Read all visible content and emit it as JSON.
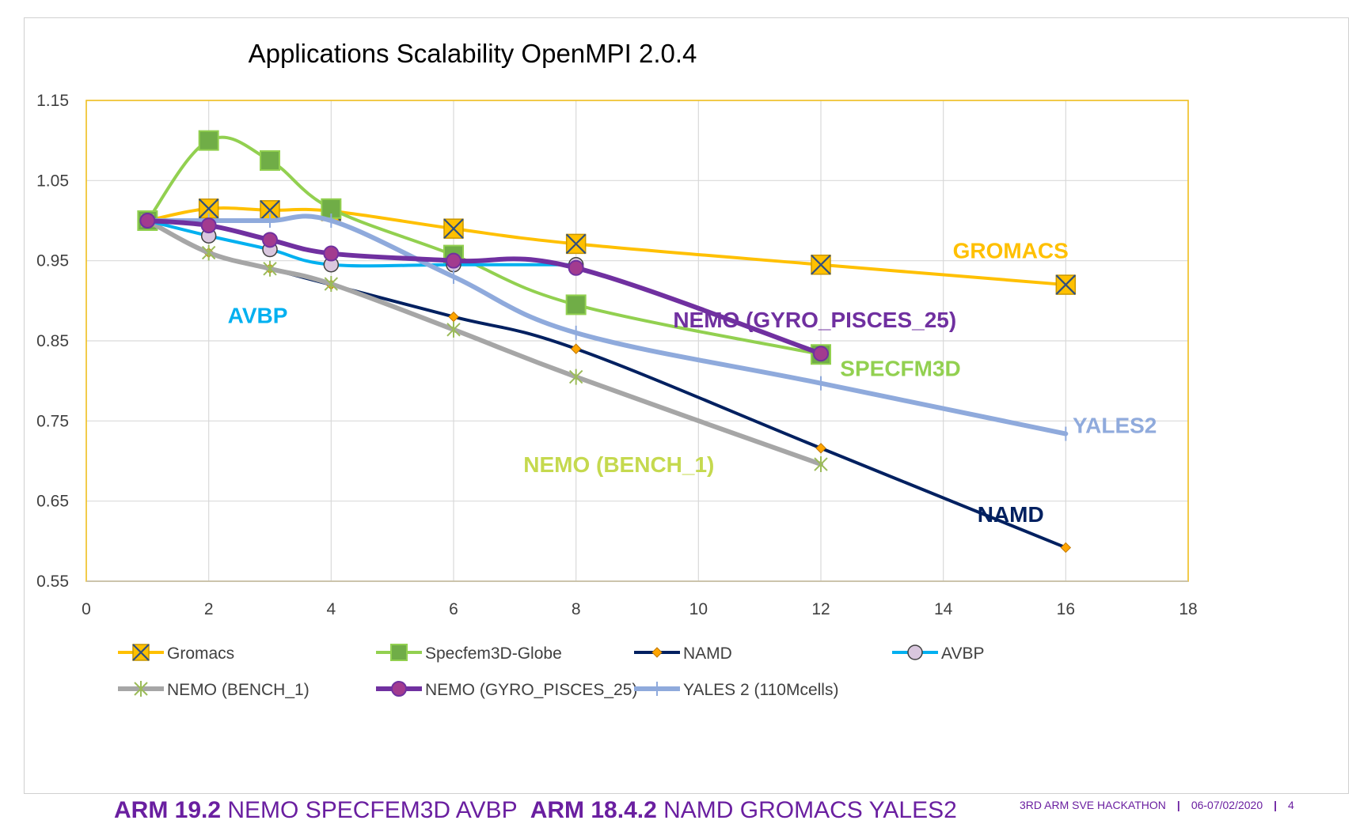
{
  "footer": {
    "arm1": "ARM 19.2",
    "apps1": " NEMO SPECFEM3D AVBP  ",
    "arm2": "ARM 18.4.2",
    "apps2": " NAMD GROMACS YALES2",
    "event": "3RD ARM SVE HACKATHON",
    "sep": "|",
    "date": "06-07/02/2020",
    "page": "4"
  },
  "chart_data": {
    "type": "line",
    "title": "Applications Scalability  OpenMPI 2.0.4",
    "xlim": [
      0,
      18
    ],
    "ylim": [
      0.55,
      1.15
    ],
    "x_ticks": [
      "0",
      "2",
      "4",
      "6",
      "8",
      "10",
      "12",
      "14",
      "16",
      "18"
    ],
    "y_ticks": [
      "0.55",
      "0.65",
      "0.75",
      "0.85",
      "0.95",
      "1.05",
      "1.15"
    ],
    "grid": true,
    "legend_position": "bottom",
    "series": [
      {
        "name": "Gromacs",
        "color": "#ffc000",
        "marker": "square-x",
        "width": 4,
        "x": [
          1,
          2,
          3,
          4,
          6,
          8,
          12,
          16
        ],
        "y": [
          1.0,
          1.015,
          1.013,
          1.012,
          0.99,
          0.971,
          0.945,
          0.92
        ]
      },
      {
        "name": "Specfem3D-Globe",
        "color": "#92d050",
        "marker": "square",
        "width": 4,
        "x": [
          1,
          2,
          3,
          4,
          6,
          8,
          12
        ],
        "y": [
          1.0,
          1.1,
          1.075,
          1.015,
          0.957,
          0.895,
          0.833
        ]
      },
      {
        "name": "NAMD",
        "color": "#002060",
        "marker": "diamond",
        "width": 4,
        "x": [
          1,
          2,
          3,
          4,
          6,
          8,
          12,
          16
        ],
        "y": [
          1.0,
          0.96,
          0.94,
          0.92,
          0.88,
          0.84,
          0.716,
          0.592
        ]
      },
      {
        "name": "AVBP",
        "color": "#00b0f0",
        "marker": "circle",
        "width": 4,
        "x": [
          1,
          2,
          3,
          4,
          6,
          8
        ],
        "y": [
          1.0,
          0.981,
          0.964,
          0.945,
          0.945,
          0.945
        ]
      },
      {
        "name": "NEMO (BENCH_1)",
        "color": "#a6a6a6",
        "marker": "star",
        "width": 6,
        "x": [
          1,
          2,
          3,
          4,
          6,
          8,
          12
        ],
        "y": [
          1.0,
          0.96,
          0.94,
          0.921,
          0.864,
          0.805,
          0.696
        ]
      },
      {
        "name": "NEMO (GYRO_PISCES_25)",
        "color": "#7030a0",
        "marker": "circle-filled",
        "width": 6,
        "x": [
          1,
          2,
          3,
          4,
          6,
          8,
          12
        ],
        "y": [
          1.0,
          0.994,
          0.976,
          0.959,
          0.95,
          0.941,
          0.834
        ]
      },
      {
        "name": "YALES 2 (110Mcells)",
        "color": "#8faadc",
        "marker": "plus",
        "width": 6,
        "x": [
          1,
          2,
          3,
          4,
          6,
          8,
          12,
          16
        ],
        "y": [
          1.0,
          1.0,
          1.0,
          1.0,
          0.93,
          0.86,
          0.797,
          0.734
        ]
      }
    ],
    "annotations": [
      {
        "text": "GROMACS",
        "color": "#ffc000",
        "x": 15.1,
        "y": 0.953
      },
      {
        "text": "NEMO (GYRO_PISCES_25)",
        "color": "#7030a0",
        "x": 11.9,
        "y": 0.867
      },
      {
        "text": "SPECFM3D",
        "color": "#92d050",
        "x": 13.3,
        "y": 0.806
      },
      {
        "text": "YALES2",
        "color": "#8faadc",
        "x": 16.8,
        "y": 0.735
      },
      {
        "text": "AVBP",
        "color": "#00b0f0",
        "x": 2.8,
        "y": 0.872
      },
      {
        "text": "NEMO (BENCH_1)",
        "color": "#c5d94e",
        "x": 8.7,
        "y": 0.686
      },
      {
        "text": "NAMD",
        "color": "#002060",
        "x": 15.1,
        "y": 0.624
      }
    ]
  }
}
